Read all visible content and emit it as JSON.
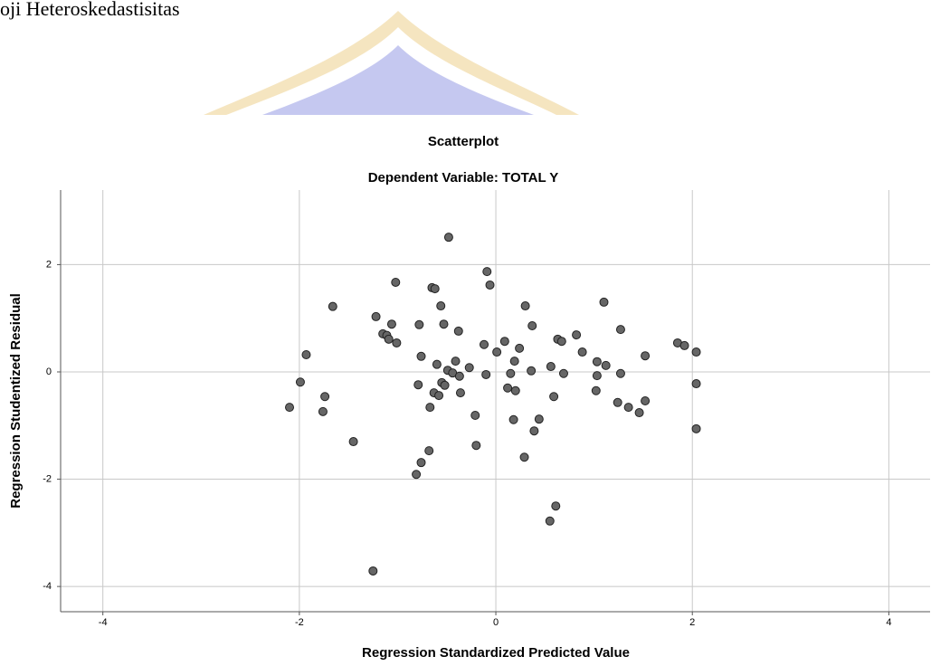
{
  "heading": "oji Heteroskedastisitas",
  "chart_data": {
    "type": "scatter",
    "title": "Scatterplot",
    "subtitle": "Dependent Variable: TOTAL Y",
    "x_label": "Regression Standardized Predicted Value",
    "y_label": "Regression Studentized Residual",
    "color": "#666666",
    "grid": true,
    "xlim": [
      -4.43,
      4.42
    ],
    "ylim": [
      -4.47,
      3.39
    ],
    "xticks": [
      -4,
      -2,
      0,
      2,
      4
    ],
    "yticks": [
      -4,
      -2,
      0,
      2
    ],
    "x": [
      -0.48,
      -0.09,
      -0.06,
      -1.02,
      -0.65,
      -0.62,
      1.1,
      0.3,
      -1.66,
      -0.56,
      -1.22,
      -1.06,
      -0.53,
      -0.78,
      0.37,
      1.27,
      -1.15,
      -1.11,
      -0.38,
      0.82,
      -1.09,
      -1.01,
      0.63,
      0.67,
      0.09,
      -0.12,
      1.85,
      1.92,
      0.24,
      0.01,
      0.88,
      2.04,
      -1.93,
      1.52,
      -0.76,
      1.03,
      1.12,
      -0.41,
      0.19,
      -0.6,
      0.56,
      -0.27,
      -0.49,
      -0.44,
      0.36,
      0.15,
      -0.1,
      -0.37,
      0.69,
      1.27,
      1.03,
      -1.99,
      -0.79,
      -0.55,
      -0.52,
      2.04,
      0.12,
      0.2,
      1.02,
      -0.36,
      -0.63,
      -0.58,
      -1.74,
      0.59,
      1.52,
      1.24,
      -2.1,
      -0.67,
      1.35,
      1.46,
      -1.76,
      -0.21,
      0.18,
      0.44,
      0.39,
      2.04,
      -1.45,
      -0.2,
      -0.68,
      0.29,
      -0.76,
      -0.81,
      0.61,
      0.55,
      -1.25
    ],
    "values": [
      2.51,
      1.87,
      1.62,
      1.67,
      1.57,
      1.55,
      1.3,
      1.23,
      1.22,
      1.23,
      1.03,
      0.89,
      0.89,
      0.88,
      0.86,
      0.79,
      0.71,
      0.68,
      0.76,
      0.69,
      0.61,
      0.54,
      0.61,
      0.57,
      0.57,
      0.51,
      0.54,
      0.49,
      0.44,
      0.37,
      0.37,
      0.37,
      0.32,
      0.3,
      0.29,
      0.19,
      0.12,
      0.2,
      0.2,
      0.14,
      0.1,
      0.08,
      0.03,
      -0.02,
      0.02,
      -0.03,
      -0.05,
      -0.08,
      -0.03,
      -0.03,
      -0.07,
      -0.19,
      -0.24,
      -0.2,
      -0.25,
      -0.22,
      -0.3,
      -0.35,
      -0.35,
      -0.39,
      -0.39,
      -0.44,
      -0.46,
      -0.46,
      -0.54,
      -0.57,
      -0.66,
      -0.66,
      -0.66,
      -0.76,
      -0.74,
      -0.81,
      -0.89,
      -0.88,
      -1.1,
      -1.06,
      -1.3,
      -1.37,
      -1.47,
      -1.59,
      -1.69,
      -1.91,
      -2.5,
      -2.78,
      -3.71
    ]
  }
}
